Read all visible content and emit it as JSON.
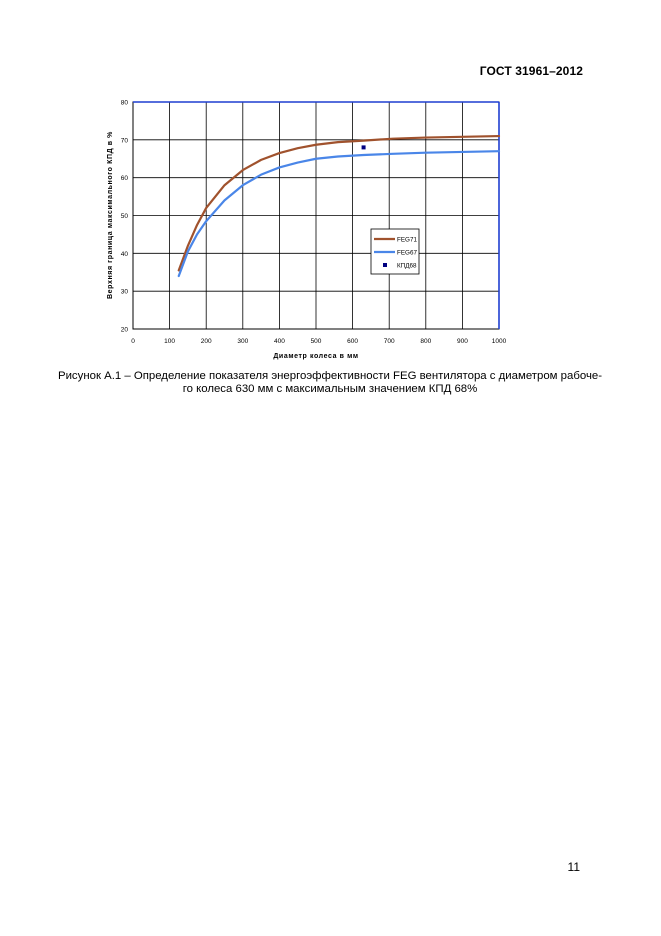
{
  "header": {
    "doc_code": "ГОСТ 31961–2012"
  },
  "figure": {
    "caption_line1": "Рисунок А.1 – Определение показателя энергоэффективности FEG вентилятора с диаметром рабоче-",
    "caption_line2": "го колеса 630 мм с максимальным значением КПД 68%"
  },
  "chart_data": {
    "type": "line",
    "title": "",
    "xlabel": "Диаметр колеса в мм",
    "ylabel": "Верхняя граница максимального КПД в %",
    "xlim": [
      0,
      1000
    ],
    "ylim": [
      20,
      80
    ],
    "xticks": [
      0,
      100,
      200,
      300,
      400,
      500,
      600,
      700,
      800,
      900,
      1000
    ],
    "yticks": [
      20,
      30,
      40,
      50,
      60,
      70,
      80
    ],
    "grid": true,
    "legend_position": "right",
    "series": [
      {
        "name": "FEG71",
        "color": "#a0522d",
        "x": [
          125,
          150,
          175,
          200,
          250,
          300,
          350,
          400,
          450,
          500,
          560,
          630,
          710,
          800,
          900,
          1000
        ],
        "y": [
          35.5,
          42,
          47.5,
          52,
          58,
          62,
          64.7,
          66.5,
          67.8,
          68.7,
          69.4,
          69.8,
          70.3,
          70.6,
          70.8,
          71
        ]
      },
      {
        "name": "FEG67",
        "color": "#4a86e8",
        "x": [
          125,
          150,
          175,
          200,
          250,
          300,
          350,
          400,
          450,
          500,
          560,
          630,
          710,
          800,
          900,
          1000
        ],
        "y": [
          34,
          40.5,
          45,
          48.5,
          54,
          58,
          60.8,
          62.7,
          64,
          65,
          65.6,
          66,
          66.3,
          66.6,
          66.8,
          67
        ]
      },
      {
        "name": "КПД68",
        "color": "#000080",
        "kind": "scatter",
        "x": [
          630
        ],
        "y": [
          68
        ]
      }
    ]
  },
  "footer": {
    "page_number": "11"
  }
}
